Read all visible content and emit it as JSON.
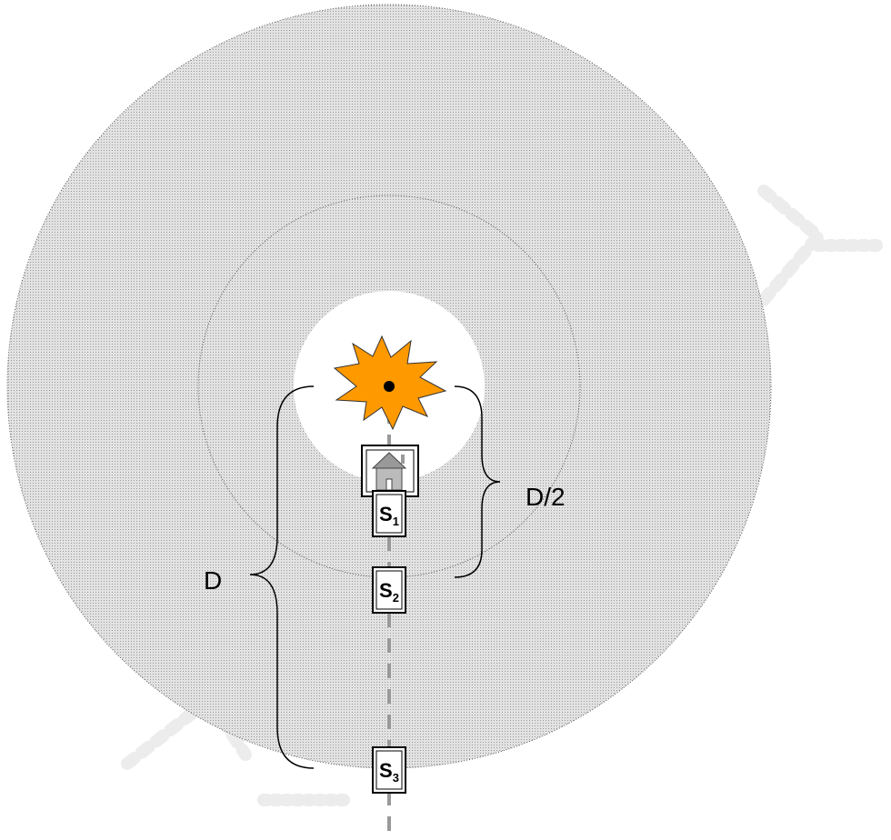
{
  "labels": {
    "half_distance": "D/2",
    "distance": "D"
  },
  "nodes": [
    {
      "label": "S",
      "subscript": "1"
    },
    {
      "label": "S",
      "subscript": "2"
    },
    {
      "label": "S",
      "subscript": "3"
    }
  ]
}
